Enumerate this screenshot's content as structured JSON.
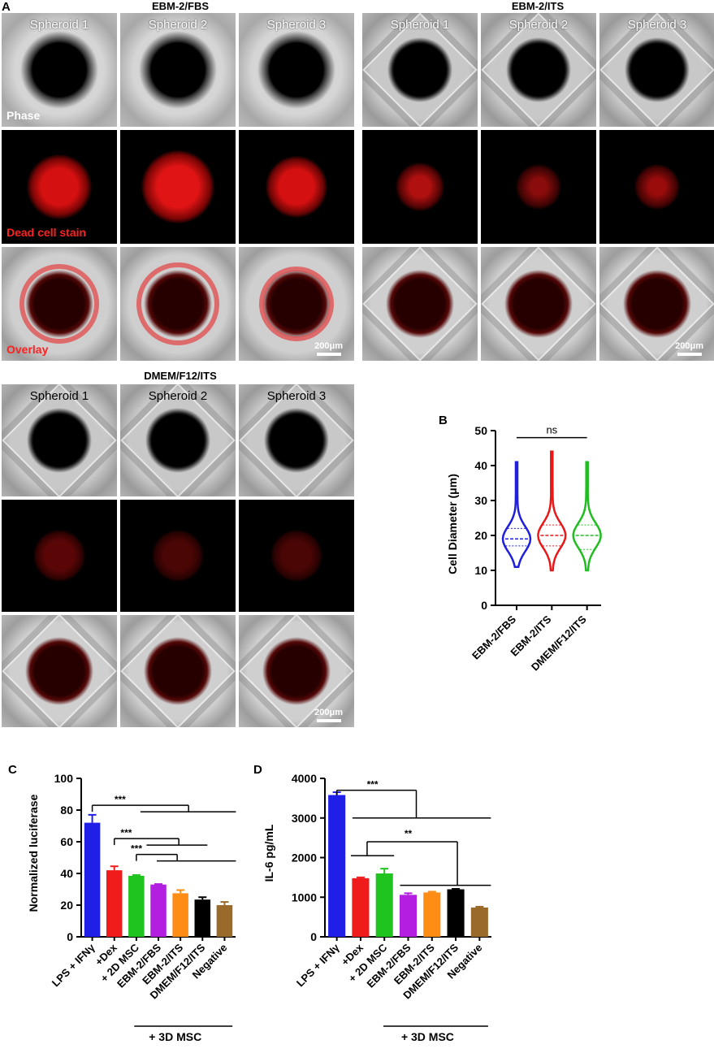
{
  "panel_a": {
    "letter": "A",
    "groups": [
      {
        "title": "EBM-2/FBS",
        "spheroids": [
          "Spheroid 1",
          "Spheroid 2",
          "Spheroid 3"
        ],
        "scale": "200μm"
      },
      {
        "title": "EBM-2/ITS",
        "spheroids": [
          "Spheroid 1",
          "Spheroid 2",
          "Spheroid 3"
        ],
        "scale": "200μm"
      },
      {
        "title": "DMEM/F12/ITS",
        "spheroids": [
          "Spheroid 1",
          "Spheroid 2",
          "Spheroid 3"
        ],
        "scale": "200μm"
      }
    ],
    "row_labels": {
      "phase": "Phase",
      "dead": "Dead cell stain",
      "overlay": "Overlay"
    },
    "colors": {
      "phase_label": "#ffffff",
      "stain_label": "#ff2020"
    }
  },
  "chart_data": [
    {
      "panel": "B",
      "type": "violin",
      "ylabel": "Cell Diameter (μm)",
      "yticks": [
        0,
        10,
        20,
        30,
        40,
        50
      ],
      "ylim": [
        0,
        50
      ],
      "categories": [
        "EBM-2/FBS",
        "EBM-2/ITS",
        "DMEM/F12/ITS"
      ],
      "colors": [
        "#1f1fdc",
        "#e81818",
        "#1fbd1f"
      ],
      "ranges": [
        [
          11,
          41
        ],
        [
          10,
          44
        ],
        [
          10,
          41
        ]
      ],
      "medians": [
        19,
        20,
        20
      ],
      "quartiles": [
        [
          17,
          22
        ],
        [
          17,
          23
        ],
        [
          16,
          23
        ]
      ],
      "significance": [
        {
          "label": "ns",
          "from": 0,
          "to": 2
        }
      ]
    },
    {
      "panel": "C",
      "type": "bar",
      "ylabel": "Normalized luciferase",
      "yticks": [
        0,
        20,
        40,
        60,
        80,
        100
      ],
      "ylim": [
        0,
        100
      ],
      "categories": [
        "LPS + IFNγ",
        "+Dex",
        "+ 2D MSC",
        "EBM-2/FBS",
        "EBM-2/ITS",
        "DMEM/F12/ITS",
        "Negative"
      ],
      "values": [
        72,
        42,
        38.5,
        33,
        27.5,
        23.5,
        20
      ],
      "errors": [
        5,
        2.5,
        0.5,
        0.3,
        2,
        1.5,
        2
      ],
      "colors": [
        "#1f1fe8",
        "#f01c1c",
        "#1fc41f",
        "#b21fe0",
        "#ff8c14",
        "#000000",
        "#9a6a2a"
      ],
      "group_label": "+ 3D MSC",
      "significance": [
        "***",
        "***",
        "***"
      ]
    },
    {
      "panel": "D",
      "type": "bar",
      "ylabel": "IL-6 pg/mL",
      "yticks": [
        0,
        1000,
        2000,
        3000,
        4000
      ],
      "ylim": [
        0,
        4000
      ],
      "categories": [
        "LPS + IFNγ",
        "+Dex",
        "+ 2D MSC",
        "EBM-2/FBS",
        "EBM-2/ITS",
        "DMEM/F12/ITS",
        "Negative"
      ],
      "values": [
        3580,
        1480,
        1600,
        1060,
        1120,
        1200,
        740
      ],
      "errors": [
        70,
        20,
        120,
        40,
        20,
        10,
        20
      ],
      "colors": [
        "#1f1fe8",
        "#f01c1c",
        "#1fc41f",
        "#b21fe0",
        "#ff8c14",
        "#000000",
        "#9a6a2a"
      ],
      "group_label": "+ 3D MSC",
      "significance": [
        "***",
        "**"
      ]
    }
  ]
}
